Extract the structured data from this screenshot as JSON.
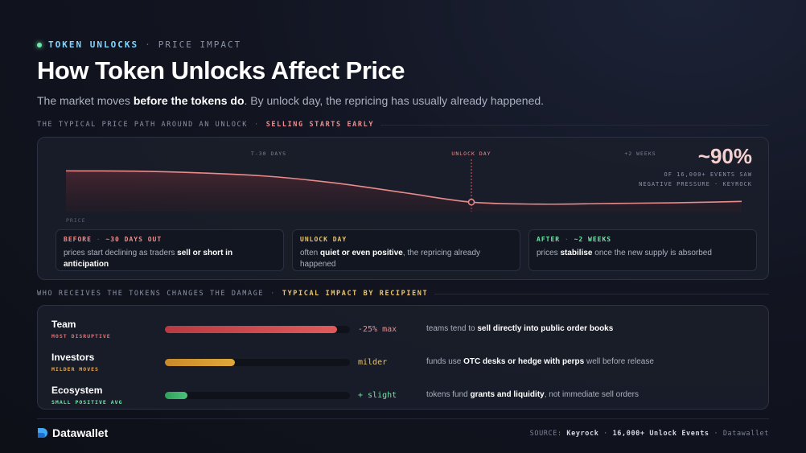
{
  "eyebrow": {
    "tag": "TOKEN UNLOCKS",
    "sep": "·",
    "sub": "PRICE IMPACT"
  },
  "title": "How Token Unlocks Affect Price",
  "subtitle": {
    "pre": "The market moves ",
    "bold": "before the tokens do",
    "post": ". By unlock day, the repricing has usually already happened."
  },
  "section1": {
    "left": "THE TYPICAL PRICE PATH AROUND AN UNLOCK",
    "sep": "·",
    "right": "SELLING STARTS EARLY"
  },
  "stat": {
    "value": "~90%",
    "line1": "OF 16,000+ EVENTS SAW",
    "line2": "NEGATIVE PRESSURE · KEYROCK"
  },
  "chart_data": {
    "type": "line",
    "ylabel": "PRICE",
    "markers": [
      {
        "label": "T-30 DAYS",
        "x": 30
      },
      {
        "label": "UNLOCK DAY",
        "x": 60
      },
      {
        "label": "+2 WEEKS",
        "x": 85
      }
    ],
    "x": [
      0,
      10,
      20,
      30,
      40,
      50,
      60,
      70,
      80,
      90,
      100
    ],
    "y": [
      100,
      99.8,
      98.5,
      96,
      91,
      84,
      77,
      75.5,
      76,
      76.5,
      77.5
    ],
    "xlim": [
      0,
      100
    ],
    "ylim": [
      70,
      102
    ],
    "highlight_point": {
      "x": 60,
      "y": 77
    },
    "colors": {
      "line": "#e98b8b",
      "fill": "#5a2a32",
      "marker_unlock": "#e05a5a"
    }
  },
  "phases": [
    {
      "title": "BEFORE",
      "sep": "·",
      "when": "~30 DAYS OUT",
      "color": "#ef8c8c",
      "t1": "prices start declining as traders ",
      "b1": "sell or short in anticipation",
      "t2": ""
    },
    {
      "title": "UNLOCK DAY",
      "sep": "",
      "when": "",
      "color": "#e9c46a",
      "t1": "often ",
      "b1": "quiet or even positive",
      "t2": ", the repricing already happened"
    },
    {
      "title": "AFTER",
      "sep": "·",
      "when": "~2 WEEKS",
      "color": "#6ee7a8",
      "t1": "prices ",
      "b1": "stabilise",
      "t2": " once the new supply is absorbed"
    }
  ],
  "section2": {
    "left": "WHO RECEIVES THE TOKENS CHANGES THE DAMAGE",
    "sep": "·",
    "right": "TYPICAL IMPACT BY RECIPIENT"
  },
  "recipients": [
    {
      "name": "Team",
      "tag": "MOST DISRUPTIVE",
      "tag_color": "#ef6b6b",
      "level": 0.93,
      "value": "-25% max",
      "value_color": "#ef8c8c",
      "bar_from": "#b83a40",
      "bar_to": "#e05a5a",
      "d1": "teams tend to ",
      "db": "sell directly into public order books",
      "d2": ""
    },
    {
      "name": "Investors",
      "tag": "MILDER MOVES",
      "tag_color": "#e9a64a",
      "level": 0.38,
      "value": "milder",
      "value_color": "#e9c46a",
      "bar_from": "#c98a2a",
      "bar_to": "#e0a83a",
      "d1": "funds use ",
      "db": "OTC desks or hedge with perps",
      "d2": " well before release"
    },
    {
      "name": "Ecosystem",
      "tag": "SMALL POSITIVE AVG",
      "tag_color": "#6ee7a8",
      "level": 0.12,
      "value": "+ slight",
      "value_color": "#6ee7a8",
      "bar_from": "#2f9e5a",
      "bar_to": "#4cc47a",
      "d1": "tokens fund ",
      "db": "grants and liquidity",
      "d2": ", not immediate sell orders"
    }
  ],
  "footer": {
    "brand": "Datawallet",
    "source_label": "SOURCE:",
    "source_1": "Keyrock",
    "dot": "·",
    "source_2": "16,000+ Unlock Events",
    "source_3": "Datawallet"
  }
}
